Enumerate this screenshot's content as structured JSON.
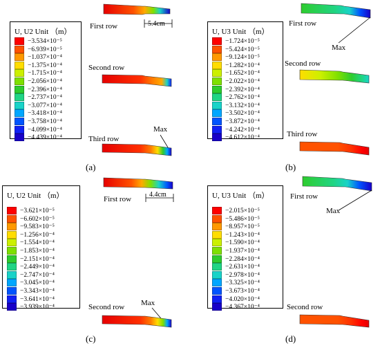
{
  "colors": [
    "#ff0000",
    "#ff5200",
    "#ff9900",
    "#ffdd00",
    "#ccf000",
    "#7fe000",
    "#2ecc2e",
    "#20d585",
    "#19d3c8",
    "#00a7ff",
    "#0055ff",
    "#1020f5",
    "#1800c8"
  ],
  "panels": [
    {
      "id": "a",
      "label": "(a)",
      "legend_title": "U, U2 Unit （m）",
      "values": [
        "−3.534×10⁻⁵",
        "−6.939×10⁻⁵",
        "−1.037×10⁻⁴",
        "−1.375×10⁻⁴",
        "−1.715×10⁻⁴",
        "−2.056×10⁻⁴",
        "−2.396×10⁻⁴",
        "−2.737×10⁻⁴",
        "−3.077×10⁻⁴",
        "−3.418×10⁻⁴",
        "−3.758×10⁻⁴",
        "−4.099×10⁻⁴",
        "−4.439×10⁻⁴"
      ],
      "rows": [
        "First row",
        "Second row",
        "Third row"
      ],
      "max_label": "Max",
      "dimension": "5.4cm"
    },
    {
      "id": "b",
      "label": "(b)",
      "legend_title": "U, U3 Unit （m）",
      "values": [
        "−1.724×10⁻⁵",
        "−5.424×10⁻⁵",
        "−9.124×10⁻⁵",
        "−1.282×10⁻⁴",
        "−1.652×10⁻⁴",
        "−2.022×10⁻⁴",
        "−2.392×10⁻⁴",
        "−2.762×10⁻⁴",
        "−3.132×10⁻⁴",
        "−3.502×10⁻⁴",
        "−3.872×10⁻⁴",
        "−4.242×10⁻⁴",
        "−4.612×10⁻⁴"
      ],
      "rows": [
        "First row",
        "Second row",
        "Third row"
      ],
      "max_label": "Max"
    },
    {
      "id": "c",
      "label": "(c)",
      "legend_title": "U, U2 Unit （m）",
      "values": [
        "−3.621×10⁻⁵",
        "−6.602×10⁻⁵",
        "−9.583×10⁻⁵",
        "−1.256×10⁻⁴",
        "−1.554×10⁻⁴",
        "−1.853×10⁻⁴",
        "−2.151×10⁻⁴",
        "−2.449×10⁻⁴",
        "−2.747×10⁻⁴",
        "−3.045×10⁻⁴",
        "−3.343×10⁻⁴",
        "−3.641×10⁻⁴",
        "−3.939×10⁻⁴"
      ],
      "rows": [
        "First row",
        "Second row"
      ],
      "max_label": "Max",
      "dimension": "4.4cm"
    },
    {
      "id": "d",
      "label": "(d)",
      "legend_title": "U, U3 Unit （m）",
      "values": [
        "−2.015×10⁻⁵",
        "−5.486×10⁻⁵",
        "−8.957×10⁻⁵",
        "−1.243×10⁻⁴",
        "−1.590×10⁻⁴",
        "−1.937×10⁻⁴",
        "−2.284×10⁻⁴",
        "−2.631×10⁻⁴",
        "−2.978×10⁻⁴",
        "−3.325×10⁻⁴",
        "−3.673×10⁻⁴",
        "−4.020×10⁻⁴",
        "−4.367×10⁻⁴"
      ],
      "rows": [
        "First row",
        "Second row"
      ],
      "max_label": "Max"
    }
  ]
}
